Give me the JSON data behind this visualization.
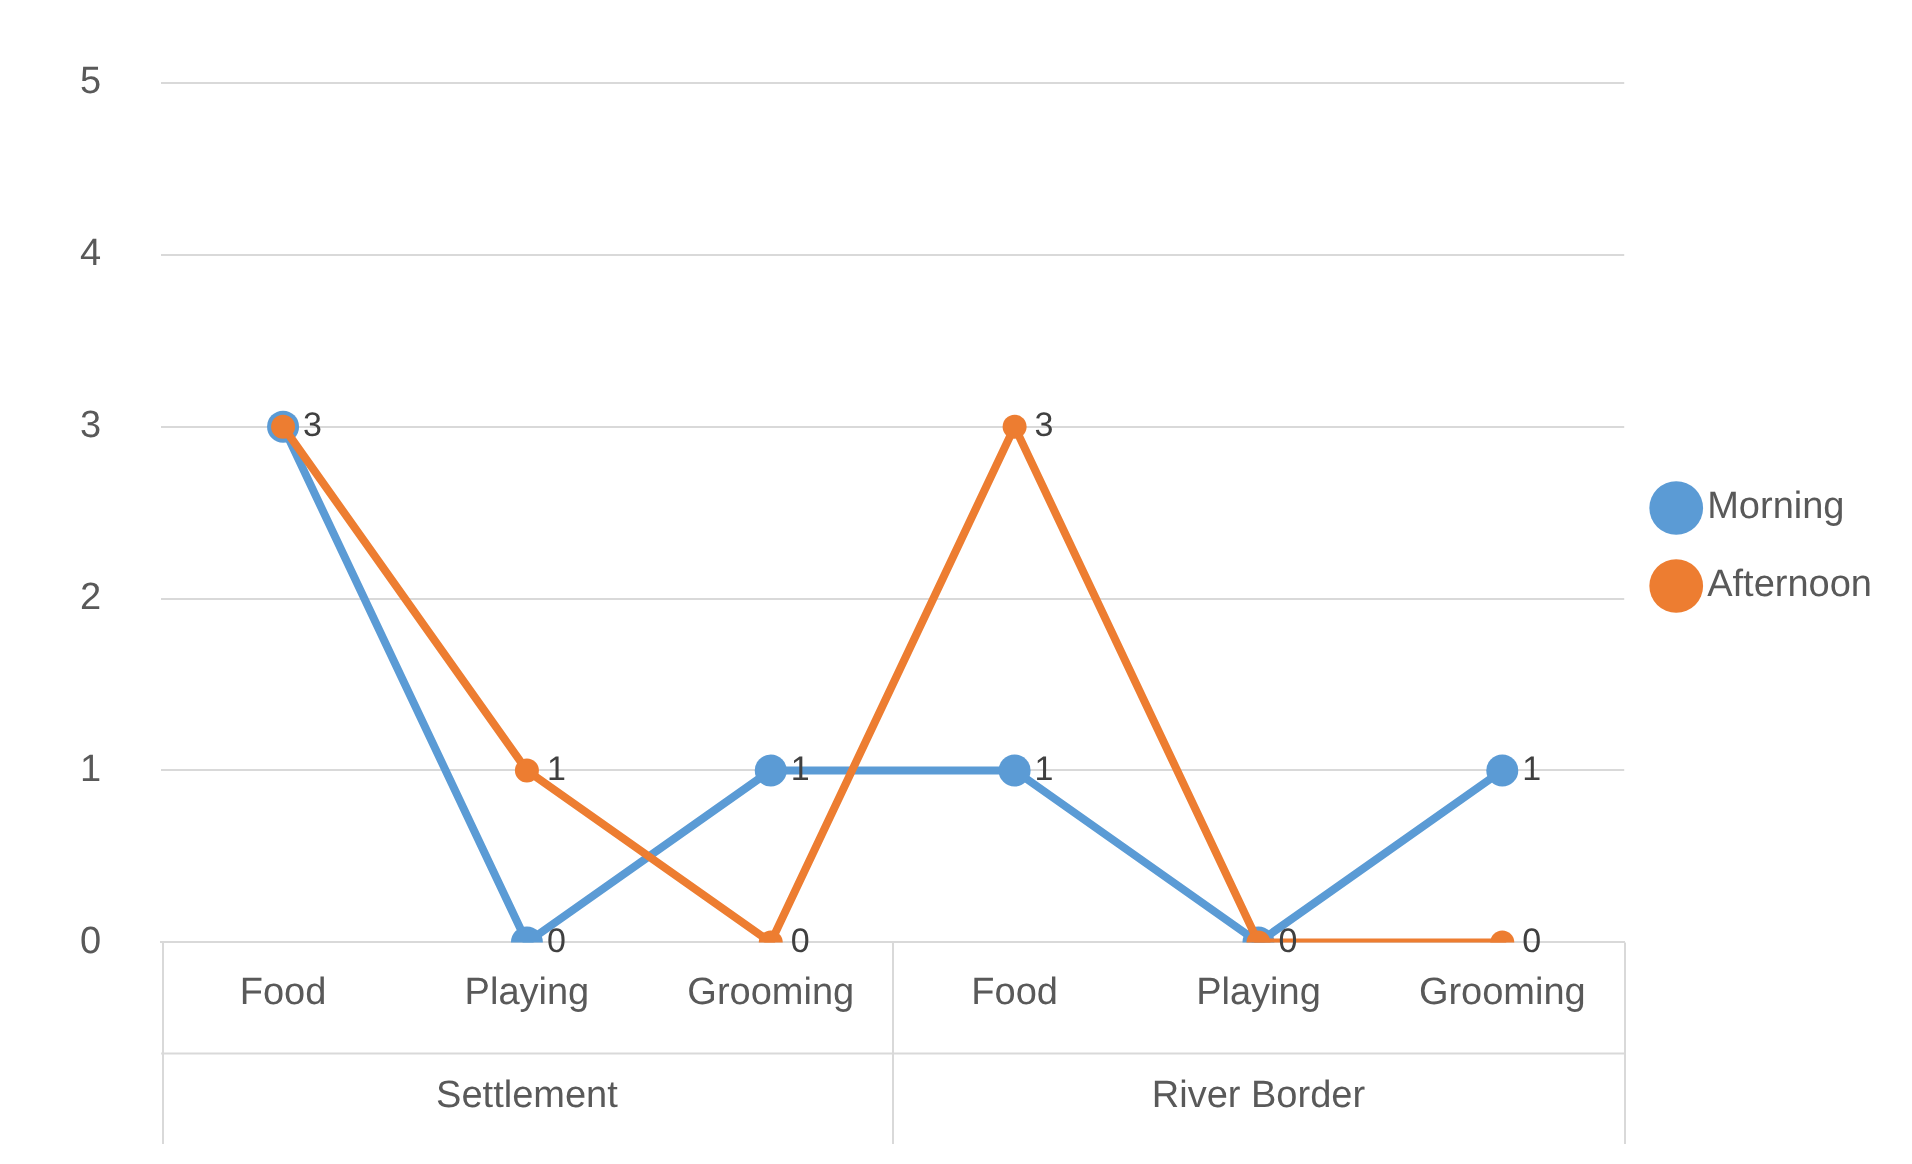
{
  "chart_data": {
    "type": "line",
    "categories": [
      "Food",
      "Playing",
      "Grooming",
      "Food",
      "Playing",
      "Grooming"
    ],
    "series": [
      {
        "name": "Morning",
        "color": "#5b9bd5",
        "values": [
          3,
          0,
          1,
          1,
          0,
          1
        ],
        "value_labels": [
          "3",
          "0",
          "1",
          "1",
          "0",
          "1"
        ]
      },
      {
        "name": "Afternoon",
        "color": "#ed7d31",
        "values": [
          3,
          1,
          0,
          3,
          0,
          0
        ],
        "value_labels": [
          null,
          "1",
          "0",
          "3",
          null,
          "0"
        ]
      }
    ],
    "annotations": [
      "Settlement",
      "River Border"
    ],
    "ylim": [
      0,
      5
    ],
    "yticks": [
      0,
      1,
      2,
      3,
      4,
      5
    ],
    "grid": "y",
    "legend": "right",
    "marker": "circle",
    "line_style": "solid"
  }
}
